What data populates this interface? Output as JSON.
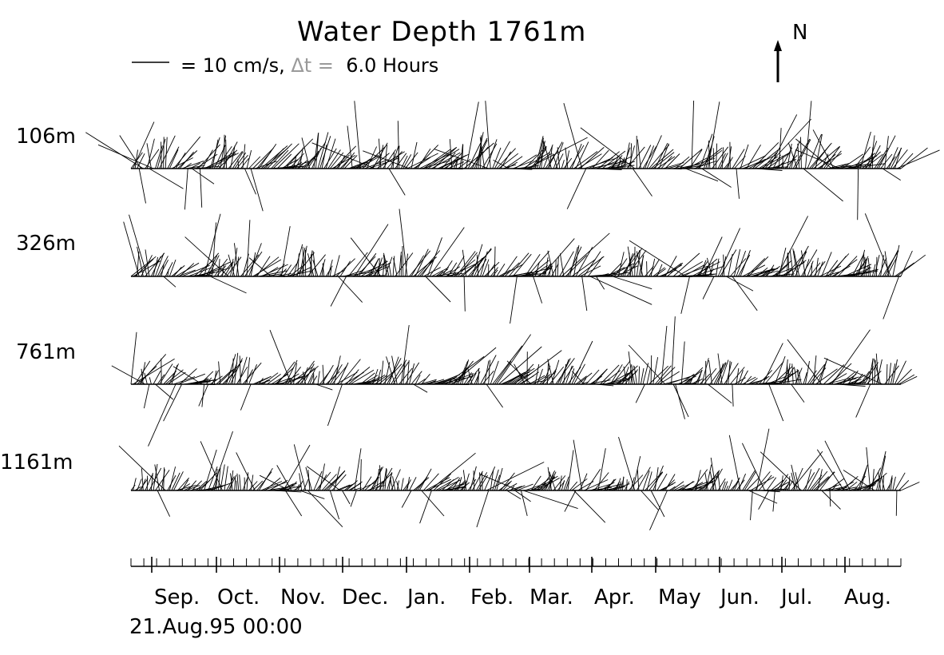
{
  "chart_data": {
    "type": "stick-plot",
    "title": "Water Depth 1761m",
    "legend": {
      "scale_prefix": "= 10 cm/s,",
      "dt_symbol": "Δt =",
      "dt_value": "6.0 Hours",
      "scale_cm_s": 10
    },
    "north_label": "N",
    "start_label": "21.Aug.95 00:00",
    "months": [
      "Sep.",
      "Oct.",
      "Nov.",
      "Dec.",
      "Jan.",
      "Feb.",
      "Mar.",
      "Apr.",
      "May",
      "Jun.",
      "Jul.",
      "Aug."
    ],
    "depths": [
      "106m",
      "326m",
      "761m",
      "1161m"
    ],
    "sample_interval_hours": 6,
    "duration_days": 365
  }
}
